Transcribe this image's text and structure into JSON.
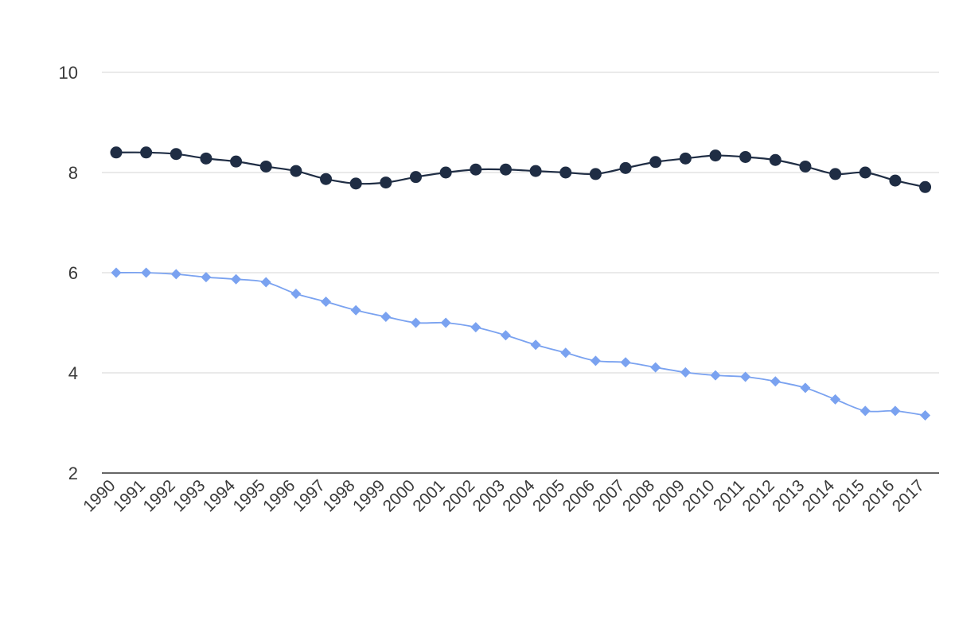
{
  "chart_data": {
    "type": "line",
    "categories": [
      "1990",
      "1991",
      "1992",
      "1993",
      "1994",
      "1995",
      "1996",
      "1997",
      "1998",
      "1999",
      "2000",
      "2001",
      "2002",
      "2003",
      "2004",
      "2005",
      "2006",
      "2007",
      "2008",
      "2009",
      "2010",
      "2011",
      "2012",
      "2013",
      "2014",
      "2015",
      "2016",
      "2017"
    ],
    "yticks": [
      2,
      4,
      6,
      8,
      10
    ],
    "ylim": [
      2,
      10
    ],
    "grid": true,
    "title": "",
    "xlabel": "",
    "ylabel": "",
    "series": [
      {
        "marker": "circle",
        "color": "#1f2d44",
        "values": [
          8.4,
          8.4,
          8.37,
          8.28,
          8.22,
          8.12,
          8.03,
          7.87,
          7.78,
          7.8,
          7.91,
          8.0,
          8.06,
          8.06,
          8.03,
          8.0,
          7.97,
          8.09,
          8.21,
          8.28,
          8.34,
          8.31,
          8.25,
          8.12,
          7.97,
          8.0,
          7.84,
          7.71
        ]
      },
      {
        "marker": "diamond",
        "color": "#7aa2f0",
        "values": [
          6.0,
          6.0,
          5.97,
          5.91,
          5.87,
          5.81,
          5.58,
          5.42,
          5.25,
          5.12,
          5.0,
          5.0,
          4.91,
          4.75,
          4.56,
          4.4,
          4.24,
          4.21,
          4.11,
          4.01,
          3.95,
          3.92,
          3.83,
          3.7,
          3.47,
          3.24,
          3.24,
          3.15
        ]
      }
    ]
  }
}
